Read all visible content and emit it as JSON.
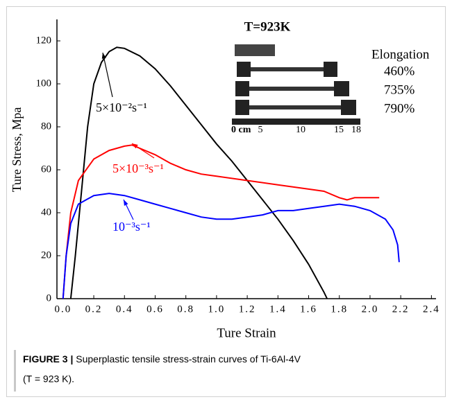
{
  "chart_data": {
    "type": "line",
    "xlabel": "Ture Strain",
    "ylabel": "Ture Stress, Mpa",
    "xlim": [
      -0.04,
      2.43
    ],
    "ylim": [
      0,
      130
    ],
    "xticks": [
      {
        "value": 0,
        "label": "0.0"
      },
      0.2,
      0.4,
      0.6,
      0.8,
      {
        "value": 1,
        "label": "1.0"
      },
      1.2,
      1.4,
      1.6,
      1.8,
      {
        "value": 2,
        "label": "2.0"
      },
      2.2,
      2.4
    ],
    "yticks": [
      0,
      20,
      40,
      60,
      80,
      100,
      120
    ],
    "series": [
      {
        "name": "5×10⁻²s⁻¹",
        "color": "#000000",
        "x": [
          0.05,
          0.08,
          0.12,
          0.16,
          0.2,
          0.25,
          0.3,
          0.35,
          0.4,
          0.5,
          0.6,
          0.7,
          0.8,
          0.9,
          1.0,
          1.1,
          1.2,
          1.3,
          1.4,
          1.5,
          1.6,
          1.7,
          1.72
        ],
        "values": [
          0,
          20,
          50,
          80,
          100,
          110,
          115,
          117,
          116.5,
          113,
          107,
          99,
          90,
          81,
          72,
          64,
          55,
          46,
          37,
          27,
          16,
          3,
          0
        ]
      },
      {
        "name": "5×10⁻³s⁻¹",
        "color": "#ff0000",
        "x": [
          0,
          0.02,
          0.05,
          0.1,
          0.2,
          0.3,
          0.4,
          0.45,
          0.5,
          0.6,
          0.7,
          0.8,
          0.9,
          1.0,
          1.2,
          1.4,
          1.6,
          1.7,
          1.8,
          1.85,
          1.9,
          2.0,
          2.06
        ],
        "values": [
          0,
          20,
          40,
          55,
          65,
          69,
          71,
          71.5,
          70,
          67,
          63,
          60,
          58,
          57,
          55,
          53,
          51,
          50,
          47,
          46,
          47,
          47,
          47
        ]
      },
      {
        "name": "10⁻³s⁻¹",
        "color": "#0000ff",
        "x": [
          0,
          0.02,
          0.05,
          0.1,
          0.2,
          0.3,
          0.4,
          0.5,
          0.6,
          0.7,
          0.8,
          0.9,
          1.0,
          1.1,
          1.2,
          1.3,
          1.4,
          1.5,
          1.6,
          1.7,
          1.8,
          1.9,
          2.0,
          2.1,
          2.15,
          2.18,
          2.19
        ],
        "values": [
          0,
          20,
          35,
          44,
          48,
          49,
          48,
          46,
          44,
          42,
          40,
          38,
          37,
          37,
          38,
          39,
          41,
          41,
          42,
          43,
          44,
          43,
          41,
          37,
          32,
          25,
          17
        ]
      }
    ]
  },
  "inset": {
    "title": "T=923K",
    "label": "Elongation",
    "elongations": [
      "460%",
      "735%",
      "790%"
    ],
    "ruler": [
      "0 cm",
      "5",
      "10",
      "15",
      "18"
    ]
  },
  "caption": {
    "label": "FIGURE 3 |",
    "text": "Superplastic tensile stress-strain curves of Ti-6Al-4V",
    "text2": "(T = 923 K)."
  }
}
